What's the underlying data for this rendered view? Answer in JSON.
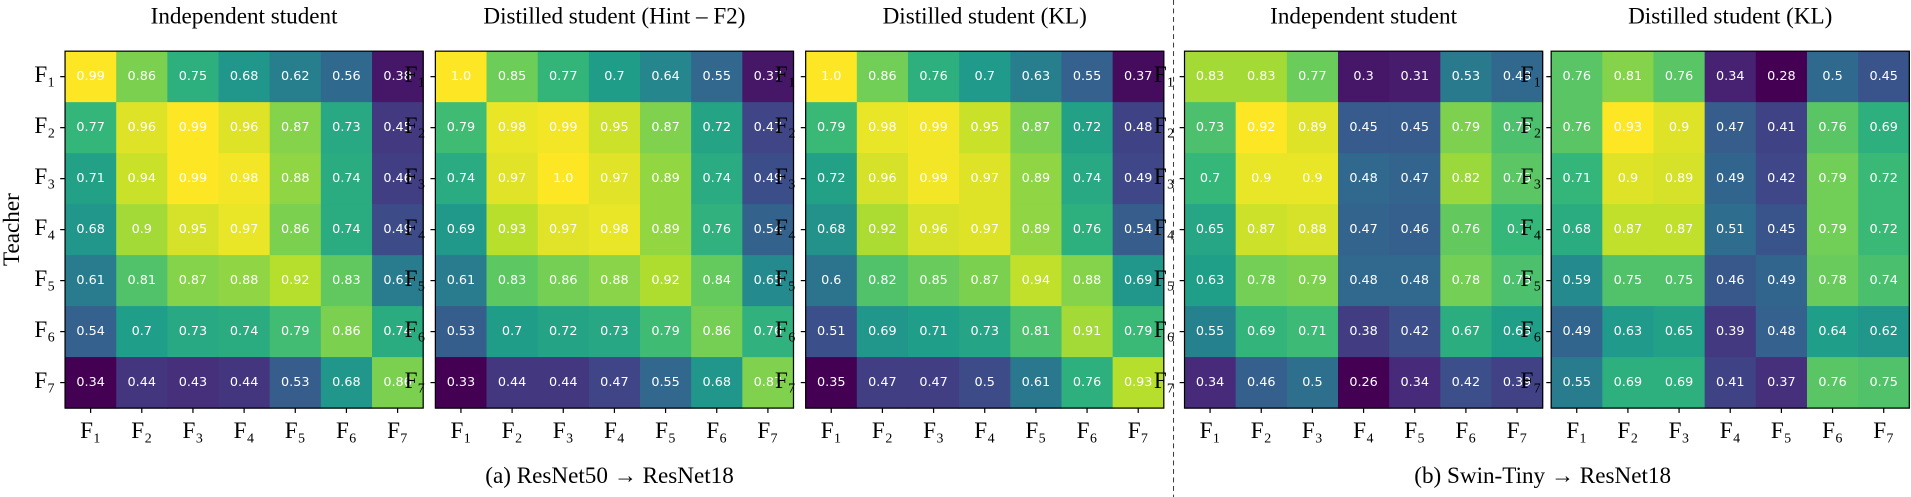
{
  "chart_data": [
    {
      "type": "heatmap",
      "title": "Independent student",
      "ylabel": "Teacher",
      "colormap": "viridis",
      "x": [
        "F₁",
        "F₂",
        "F₃",
        "F₄",
        "F₅",
        "F₆",
        "F₇"
      ],
      "y": [
        "F₁",
        "F₂",
        "F₃",
        "F₄",
        "F₅",
        "F₆",
        "F₇"
      ],
      "values": [
        [
          0.99,
          0.86,
          0.75,
          0.68,
          0.62,
          0.56,
          0.38
        ],
        [
          0.77,
          0.96,
          0.99,
          0.96,
          0.87,
          0.73,
          0.45
        ],
        [
          0.71,
          0.94,
          0.99,
          0.98,
          0.88,
          0.74,
          0.46
        ],
        [
          0.68,
          0.9,
          0.95,
          0.97,
          0.86,
          0.74,
          0.49
        ],
        [
          0.61,
          0.81,
          0.87,
          0.88,
          0.92,
          0.83,
          0.61
        ],
        [
          0.54,
          0.7,
          0.73,
          0.74,
          0.79,
          0.86,
          0.74
        ],
        [
          0.34,
          0.44,
          0.43,
          0.44,
          0.53,
          0.68,
          0.86
        ]
      ]
    },
    {
      "type": "heatmap",
      "title": "Distilled student (Hint – F2)",
      "colormap": "viridis",
      "x": [
        "F₁",
        "F₂",
        "F₃",
        "F₄",
        "F₅",
        "F₆",
        "F₇"
      ],
      "y": [
        "F₁",
        "F₂",
        "F₃",
        "F₄",
        "F₅",
        "F₆",
        "F₇"
      ],
      "values": [
        [
          1.0,
          0.85,
          0.77,
          0.7,
          0.64,
          0.55,
          0.37
        ],
        [
          0.79,
          0.98,
          0.99,
          0.95,
          0.87,
          0.72,
          0.47
        ],
        [
          0.74,
          0.97,
          1.0,
          0.97,
          0.89,
          0.74,
          0.49
        ],
        [
          0.69,
          0.93,
          0.97,
          0.98,
          0.89,
          0.76,
          0.54
        ],
        [
          0.61,
          0.83,
          0.86,
          0.88,
          0.92,
          0.84,
          0.65
        ],
        [
          0.53,
          0.7,
          0.72,
          0.73,
          0.79,
          0.86,
          0.76
        ],
        [
          0.33,
          0.44,
          0.44,
          0.47,
          0.55,
          0.68,
          0.87
        ]
      ],
      "value_labels": [
        [
          "1.0",
          "0.85",
          "0.77",
          "0.7",
          "0.64",
          "0.55",
          "0.37"
        ],
        [
          "0.79",
          "0.98",
          "0.99",
          "0.95",
          "0.87",
          "0.72",
          "0.47"
        ],
        [
          "0.74",
          "0.97",
          "1.0",
          "0.97",
          "0.89",
          "0.74",
          "0.49"
        ],
        [
          "0.69",
          "0.93",
          "0.97",
          "0.98",
          "0.89",
          "0.76",
          "0.54"
        ],
        [
          "0.61",
          "0.83",
          "0.86",
          "0.88",
          "0.92",
          "0.84",
          "0.65"
        ],
        [
          "0.53",
          "0.7",
          "0.72",
          "0.73",
          "0.79",
          "0.86",
          "0.76"
        ],
        [
          "0.33",
          "0.44",
          "0.44",
          "0.47",
          "0.55",
          "0.68",
          "0.87"
        ]
      ]
    },
    {
      "type": "heatmap",
      "title": "Distilled student (KL)",
      "colormap": "viridis",
      "x": [
        "F₁",
        "F₂",
        "F₃",
        "F₄",
        "F₅",
        "F₆",
        "F₇"
      ],
      "y": [
        "F₁",
        "F₂",
        "F₃",
        "F₄",
        "F₅",
        "F₆",
        "F₇"
      ],
      "values": [
        [
          1.0,
          0.86,
          0.76,
          0.7,
          0.63,
          0.55,
          0.37
        ],
        [
          0.79,
          0.98,
          0.99,
          0.95,
          0.87,
          0.72,
          0.48
        ],
        [
          0.72,
          0.96,
          0.99,
          0.97,
          0.89,
          0.74,
          0.49
        ],
        [
          0.68,
          0.92,
          0.96,
          0.97,
          0.89,
          0.76,
          0.54
        ],
        [
          0.6,
          0.82,
          0.85,
          0.87,
          0.94,
          0.88,
          0.69
        ],
        [
          0.51,
          0.69,
          0.71,
          0.73,
          0.81,
          0.91,
          0.79
        ],
        [
          0.35,
          0.47,
          0.47,
          0.5,
          0.61,
          0.76,
          0.93
        ]
      ],
      "value_labels": [
        [
          "1.0",
          "0.86",
          "0.76",
          "0.7",
          "0.63",
          "0.55",
          "0.37"
        ],
        [
          "0.79",
          "0.98",
          "0.99",
          "0.95",
          "0.87",
          "0.72",
          "0.48"
        ],
        [
          "0.72",
          "0.96",
          "0.99",
          "0.97",
          "0.89",
          "0.74",
          "0.49"
        ],
        [
          "0.68",
          "0.92",
          "0.96",
          "0.97",
          "0.89",
          "0.76",
          "0.54"
        ],
        [
          "0.6",
          "0.82",
          "0.85",
          "0.87",
          "0.94",
          "0.88",
          "0.69"
        ],
        [
          "0.51",
          "0.69",
          "0.71",
          "0.73",
          "0.81",
          "0.91",
          "0.79"
        ],
        [
          "0.35",
          "0.47",
          "0.47",
          "0.5",
          "0.61",
          "0.76",
          "0.93"
        ]
      ]
    },
    {
      "type": "heatmap",
      "title": "Independent student",
      "colormap": "viridis",
      "x": [
        "F₁",
        "F₂",
        "F₃",
        "F₄",
        "F₅",
        "F₆",
        "F₇"
      ],
      "y": [
        "F₁",
        "F₂",
        "F₃",
        "F₄",
        "F₅",
        "F₆",
        "F₇"
      ],
      "values": [
        [
          0.83,
          0.83,
          0.77,
          0.3,
          0.31,
          0.53,
          0.48
        ],
        [
          0.73,
          0.92,
          0.89,
          0.45,
          0.45,
          0.79,
          0.73
        ],
        [
          0.7,
          0.9,
          0.9,
          0.48,
          0.47,
          0.82,
          0.75
        ],
        [
          0.65,
          0.87,
          0.88,
          0.47,
          0.46,
          0.76,
          0.7
        ],
        [
          0.63,
          0.78,
          0.79,
          0.48,
          0.48,
          0.78,
          0.73
        ],
        [
          0.55,
          0.69,
          0.71,
          0.38,
          0.42,
          0.67,
          0.63
        ],
        [
          0.34,
          0.46,
          0.5,
          0.26,
          0.34,
          0.42,
          0.39
        ]
      ]
    },
    {
      "type": "heatmap",
      "title": "Distilled student (KL)",
      "colormap": "viridis",
      "x": [
        "F₁",
        "F₂",
        "F₃",
        "F₄",
        "F₅",
        "F₆",
        "F₇"
      ],
      "y": [
        "F₁",
        "F₂",
        "F₃",
        "F₄",
        "F₅",
        "F₆",
        "F₇"
      ],
      "values": [
        [
          0.76,
          0.81,
          0.76,
          0.34,
          0.28,
          0.5,
          0.45
        ],
        [
          0.76,
          0.93,
          0.9,
          0.47,
          0.41,
          0.76,
          0.69
        ],
        [
          0.71,
          0.9,
          0.89,
          0.49,
          0.42,
          0.79,
          0.72
        ],
        [
          0.68,
          0.87,
          0.87,
          0.51,
          0.45,
          0.79,
          0.72
        ],
        [
          0.59,
          0.75,
          0.75,
          0.46,
          0.49,
          0.78,
          0.74
        ],
        [
          0.49,
          0.63,
          0.65,
          0.39,
          0.48,
          0.64,
          0.62
        ],
        [
          0.55,
          0.69,
          0.69,
          0.41,
          0.37,
          0.76,
          0.75
        ]
      ]
    }
  ],
  "captions": [
    "(a) ResNet50 → ResNet18",
    "(b) Swin-Tiny → ResNet18"
  ]
}
